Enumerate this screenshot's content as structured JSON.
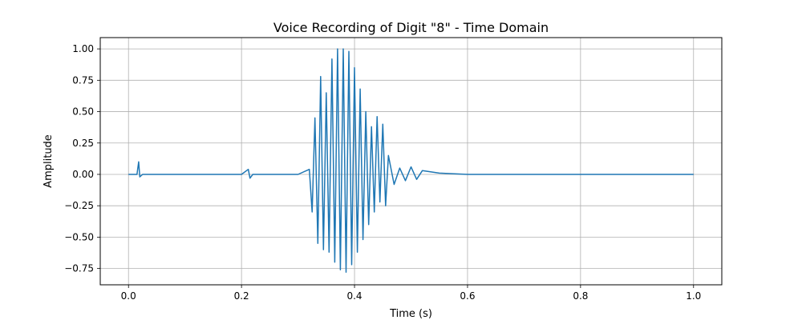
{
  "chart_data": {
    "type": "line",
    "title": "Voice Recording of Digit \"8\" - Time Domain",
    "xlabel": "Time (s)",
    "ylabel": "Amplitude",
    "xlim": [
      -0.05,
      1.05
    ],
    "ylim": [
      -0.88,
      1.09
    ],
    "xticks": [
      0.0,
      0.2,
      0.4,
      0.6,
      0.8,
      1.0
    ],
    "xtick_labels": [
      "0.0",
      "0.2",
      "0.4",
      "0.6",
      "0.8",
      "1.0"
    ],
    "yticks": [
      -0.75,
      -0.5,
      -0.25,
      0.0,
      0.25,
      0.5,
      0.75,
      1.0
    ],
    "ytick_labels": [
      "−0.75",
      "−0.50",
      "−0.25",
      "0.00",
      "0.25",
      "0.50",
      "0.75",
      "1.00"
    ],
    "grid": true,
    "colors": {
      "line": "#1f77b4",
      "grid": "#b0b0b0"
    },
    "series": [
      {
        "x": [
          0.0,
          0.015,
          0.018,
          0.02,
          0.025,
          0.05,
          0.1,
          0.15,
          0.2,
          0.212,
          0.215,
          0.22,
          0.25,
          0.3,
          0.32,
          0.325,
          0.33,
          0.335,
          0.34,
          0.345,
          0.35,
          0.355,
          0.36,
          0.365,
          0.37,
          0.375,
          0.38,
          0.385,
          0.39,
          0.395,
          0.4,
          0.405,
          0.41,
          0.415,
          0.42,
          0.425,
          0.43,
          0.435,
          0.44,
          0.445,
          0.45,
          0.455,
          0.46,
          0.47,
          0.48,
          0.49,
          0.5,
          0.51,
          0.52,
          0.55,
          0.6,
          0.7,
          0.8,
          0.9,
          1.0
        ],
        "y": [
          0.0,
          0.0,
          0.1,
          -0.02,
          0.0,
          0.0,
          0.0,
          0.0,
          0.0,
          0.04,
          -0.03,
          0.0,
          0.0,
          0.0,
          0.04,
          -0.3,
          0.45,
          -0.55,
          0.78,
          -0.6,
          0.65,
          -0.62,
          0.92,
          -0.7,
          1.0,
          -0.76,
          1.0,
          -0.78,
          0.98,
          -0.72,
          0.85,
          -0.62,
          0.68,
          -0.52,
          0.5,
          -0.4,
          0.38,
          -0.3,
          0.46,
          -0.22,
          0.4,
          -0.25,
          0.15,
          -0.08,
          0.05,
          -0.05,
          0.06,
          -0.04,
          0.03,
          0.01,
          0.0,
          0.0,
          0.0,
          0.0,
          0.0
        ]
      }
    ]
  }
}
